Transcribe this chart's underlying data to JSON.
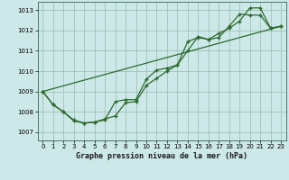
{
  "xlabel": "Graphe pression niveau de la mer (hPa)",
  "bg_color": "#cce8e8",
  "grid_color": "#99bbaa",
  "line_color": "#2d6a2d",
  "xlim": [
    -0.5,
    23.5
  ],
  "ylim": [
    1006.6,
    1013.4
  ],
  "yticks": [
    1007,
    1008,
    1009,
    1010,
    1011,
    1012,
    1013
  ],
  "xticks": [
    0,
    1,
    2,
    3,
    4,
    5,
    6,
    7,
    8,
    9,
    10,
    11,
    12,
    13,
    14,
    15,
    16,
    17,
    18,
    19,
    20,
    21,
    22,
    23
  ],
  "series1_x": [
    0,
    1,
    2,
    3,
    4,
    5,
    6,
    7,
    8,
    9,
    10,
    11,
    12,
    13,
    14,
    15,
    16,
    17,
    18,
    19,
    20,
    21,
    22,
    23
  ],
  "series1_y": [
    1009.0,
    1008.35,
    1008.0,
    1007.6,
    1007.45,
    1007.5,
    1007.65,
    1007.8,
    1008.45,
    1008.5,
    1009.3,
    1009.65,
    1010.0,
    1010.3,
    1011.45,
    1011.65,
    1011.55,
    1011.85,
    1012.1,
    1012.45,
    1013.1,
    1013.1,
    1012.1,
    1012.2
  ],
  "series2_x": [
    0,
    1,
    2,
    3,
    4,
    5,
    6,
    7,
    8,
    9,
    10,
    11,
    12,
    13,
    14,
    15,
    16,
    17,
    18,
    19,
    20,
    21,
    22,
    23
  ],
  "series2_y": [
    1009.0,
    1008.35,
    1008.0,
    1007.55,
    1007.45,
    1007.5,
    1007.6,
    1008.5,
    1008.6,
    1008.6,
    1009.6,
    1010.05,
    1010.15,
    1010.3,
    1011.0,
    1011.7,
    1011.55,
    1011.65,
    1012.2,
    1012.8,
    1012.75,
    1012.75,
    1012.1,
    1012.2
  ],
  "series3_x": [
    0,
    23
  ],
  "series3_y": [
    1009.0,
    1012.2
  ],
  "tick_fontsize": 5.0,
  "xlabel_fontsize": 6.0
}
